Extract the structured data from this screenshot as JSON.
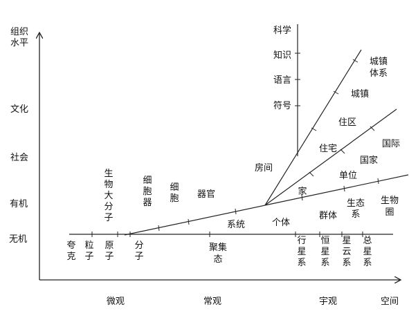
{
  "y_axis": {
    "title_lines": [
      "组织",
      "水平"
    ],
    "levels": [
      "无机",
      "有机",
      "社会",
      "文化"
    ]
  },
  "x_axis": {
    "title": "空间",
    "scales": [
      "微观",
      "常观",
      "宇观"
    ]
  },
  "culture_stack": [
    "科学",
    "知识",
    "语言",
    "符号"
  ],
  "baseline_labels": [
    {
      "id": "quark",
      "lines": [
        "夸",
        "克"
      ]
    },
    {
      "id": "particle",
      "lines": [
        "粒",
        "子"
      ]
    },
    {
      "id": "atom",
      "lines": [
        "原",
        "子"
      ]
    },
    {
      "id": "molecule",
      "lines": [
        "分",
        "子"
      ]
    },
    {
      "id": "aggregate",
      "lines": [
        "聚集",
        "态"
      ]
    },
    {
      "id": "planet-system",
      "lines": [
        "行",
        "星",
        "系"
      ]
    },
    {
      "id": "star-system",
      "lines": [
        "恒",
        "星",
        "系"
      ]
    },
    {
      "id": "nebula-system",
      "lines": [
        "星",
        "云",
        "系"
      ]
    },
    {
      "id": "total-star-system",
      "lines": [
        "总",
        "星",
        "系"
      ]
    }
  ],
  "branch_labels": [
    {
      "id": "bio-macromolecule",
      "lines": [
        "生",
        "物",
        "大",
        "分",
        "子"
      ]
    },
    {
      "id": "organelle",
      "lines": [
        "细",
        "胞",
        "器"
      ]
    },
    {
      "id": "cell",
      "lines": [
        "细",
        "胞"
      ]
    },
    {
      "id": "organ",
      "lines": [
        "器官"
      ]
    },
    {
      "id": "system",
      "lines": [
        "系统"
      ]
    },
    {
      "id": "individual",
      "lines": [
        "个体"
      ]
    },
    {
      "id": "population",
      "lines": [
        "群体"
      ]
    },
    {
      "id": "ecosystem",
      "lines": [
        "生态",
        "系"
      ]
    },
    {
      "id": "biosphere",
      "lines": [
        "生物",
        "圈"
      ]
    },
    {
      "id": "room",
      "lines": [
        "房间"
      ]
    },
    {
      "id": "home",
      "lines": [
        "家"
      ]
    },
    {
      "id": "residence",
      "lines": [
        "住宅"
      ]
    },
    {
      "id": "district",
      "lines": [
        "住区"
      ]
    },
    {
      "id": "town",
      "lines": [
        "城镇"
      ]
    },
    {
      "id": "urban-system",
      "lines": [
        "城镇",
        "体系"
      ]
    },
    {
      "id": "unit",
      "lines": [
        "单位"
      ]
    },
    {
      "id": "nation",
      "lines": [
        "国家"
      ]
    },
    {
      "id": "international",
      "lines": [
        "国际"
      ]
    }
  ]
}
